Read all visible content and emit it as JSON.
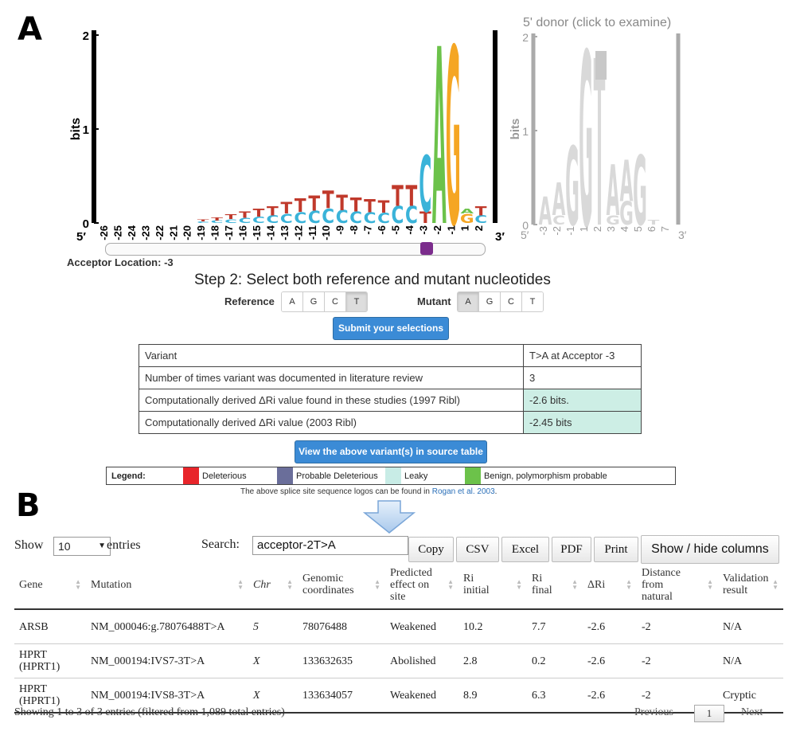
{
  "panel_a_label": "A",
  "panel_b_label": "B",
  "acceptor_logo": {
    "ylabel": "bits",
    "yticks": [
      "0",
      "1",
      "2"
    ],
    "end5": "5′",
    "end3": "3′",
    "positions": [
      "-26",
      "-25",
      "-24",
      "-23",
      "-22",
      "-21",
      "-20",
      "-19",
      "-18",
      "-17",
      "-16",
      "-15",
      "-14",
      "-13",
      "-12",
      "-11",
      "-10",
      "-9",
      "-8",
      "-7",
      "-6",
      "-5",
      "-4",
      "-3",
      "-2",
      "-1",
      "1",
      "2"
    ],
    "location_label": "Acceptor Location: -3",
    "slider_value": -3
  },
  "donor_logo": {
    "title": "5' donor (click to examine)",
    "ylabel": "bits",
    "yticks": [
      "0",
      "1",
      "2"
    ],
    "end5": "5′",
    "end3": "3′",
    "positions": [
      "-3",
      "-2",
      "-1",
      "1",
      "2",
      "3",
      "4",
      "5",
      "6",
      "7"
    ]
  },
  "step2": {
    "prefix": "Step 2: ",
    "text": "Select both reference and mutant nucleotides"
  },
  "reference": {
    "label": "Reference",
    "options": [
      "A",
      "G",
      "C",
      "T"
    ],
    "selected": "T"
  },
  "mutant": {
    "label": "Mutant",
    "options": [
      "A",
      "G",
      "C",
      "T"
    ],
    "selected": "A"
  },
  "submit_label": "Submit your selections",
  "variant_table": [
    {
      "label": "Variant",
      "value": "T>A at Acceptor -3"
    },
    {
      "label": "Number of times variant was documented in literature review",
      "value": "3"
    },
    {
      "label": "Computationally derived ΔRi value found in these studies (1997 Ribl)",
      "value": "-2.6 bits."
    },
    {
      "label": "Computationally derived ΔRi value (2003 Ribl)",
      "value": "-2.45 bits"
    }
  ],
  "view_source_label": "View the above variant(s) in source table",
  "legend": {
    "title": "Legend:",
    "items": [
      {
        "label": "Deleterious",
        "color": "#e8252a"
      },
      {
        "label": "Probable Deleterious",
        "color": "#6a6e9a"
      },
      {
        "label": "Leaky",
        "color": "#c8ece6"
      },
      {
        "label": "Benign, polymorphism probable",
        "color": "#6cc24a"
      }
    ]
  },
  "logo_note": {
    "text": "The above splice site sequence logos can be found in ",
    "link": "Rogan et al. 2003",
    "suffix": "."
  },
  "datatable": {
    "show_label": "Show",
    "entries_value": "10",
    "entries_label": "entries",
    "search_label": "Search:",
    "search_value": "acceptor-2T>A",
    "buttons": [
      "Copy",
      "CSV",
      "Excel",
      "PDF",
      "Print",
      "Show / hide columns"
    ],
    "columns": [
      "Gene",
      "Mutation",
      "Chr",
      "Genomic coordinates",
      "Predicted effect on site",
      "Ri initial",
      "Ri final",
      "ΔRi",
      "Distance from natural",
      "Validation result"
    ],
    "rows": [
      [
        "ARSB",
        "NM_000046:g.78076488T>A",
        "5",
        "78076488",
        "Weakened",
        "10.2",
        "7.7",
        "-2.6",
        "-2",
        "N/A"
      ],
      [
        "HPRT (HPRT1)",
        "NM_000194:IVS7-3T>A",
        "X",
        "133632635",
        "Abolished",
        "2.8",
        "0.2",
        "-2.6",
        "-2",
        "N/A"
      ],
      [
        "HPRT (HPRT1)",
        "NM_000194:IVS8-3T>A",
        "X",
        "133634057",
        "Weakened",
        "8.9",
        "6.3",
        "-2.6",
        "-2",
        "Cryptic"
      ]
    ],
    "info": "Showing 1 to 3 of 3 entries (filtered from 1,089 total entries)",
    "previous": "Previous",
    "page": "1",
    "next": "Next"
  },
  "colors": {
    "A": "#6cc24a",
    "C": "#3ab3d9",
    "G": "#f5a623",
    "T": "#c0392b",
    "accent": "#3b8bd6",
    "slider_thumb": "#7b2c8c"
  }
}
